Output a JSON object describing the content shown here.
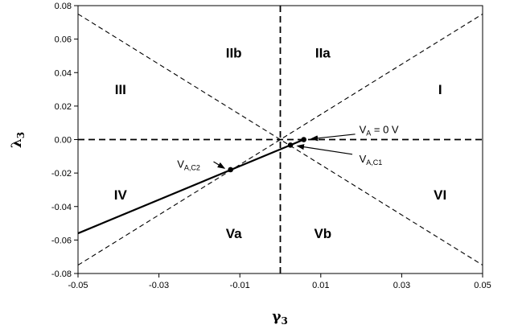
{
  "chart_data": {
    "type": "line",
    "title": "",
    "xlabel": "γ3",
    "ylabel": "λ3",
    "xlim": [
      -0.05,
      0.05
    ],
    "ylim": [
      -0.08,
      0.08
    ],
    "grid": false,
    "x_ticks": [
      "-0.05",
      "-0.03",
      "-0.01",
      "0.01",
      "0.03",
      "0.05"
    ],
    "x_tick_values": [
      -0.05,
      -0.03,
      -0.01,
      0.01,
      0.03,
      0.05
    ],
    "y_ticks": [
      "0.08",
      "0.06",
      "0.04",
      "0.02",
      "0.00",
      "-0.02",
      "-0.04",
      "-0.06",
      "-0.08"
    ],
    "y_tick_values": [
      0.08,
      0.06,
      0.04,
      0.02,
      0.0,
      -0.02,
      -0.04,
      -0.06,
      -0.08
    ],
    "dashed_lines": [
      {
        "x": [
          -0.05,
          0.05
        ],
        "y": [
          0.075,
          -0.075
        ]
      },
      {
        "x": [
          -0.05,
          0.05
        ],
        "y": [
          -0.075,
          0.075
        ]
      },
      {
        "x": [
          -0.05,
          0.05
        ],
        "y": [
          0.0,
          0.0
        ]
      },
      {
        "x": [
          0.0,
          0.0
        ],
        "y": [
          -0.08,
          0.08
        ]
      }
    ],
    "solid_line": {
      "x": [
        -0.05,
        0.0058
      ],
      "y": [
        -0.056,
        0.0
      ]
    },
    "points": [
      {
        "x": 0.0058,
        "y": 0.0
      },
      {
        "x": 0.0025,
        "y": -0.0033
      },
      {
        "x": -0.0123,
        "y": -0.018
      }
    ],
    "regions": [
      {
        "label": "IIb",
        "x": -0.0115,
        "y": 0.052
      },
      {
        "label": "IIa",
        "x": 0.0105,
        "y": 0.052
      },
      {
        "label": "III",
        "x": -0.0395,
        "y": 0.03
      },
      {
        "label": "I",
        "x": 0.0395,
        "y": 0.03
      },
      {
        "label": "IV",
        "x": -0.0395,
        "y": -0.033
      },
      {
        "label": "VI",
        "x": 0.0395,
        "y": -0.033
      },
      {
        "label": "Va",
        "x": -0.0115,
        "y": -0.056
      },
      {
        "label": "Vb",
        "x": 0.0105,
        "y": -0.056
      }
    ],
    "annotations": [
      {
        "main": "V",
        "sub": "A",
        "rest": " = 0 V",
        "text_x": 0.0195,
        "text_y": 0.0062,
        "arrow_from_x": 0.0185,
        "arrow_from_y": 0.0032,
        "arrow_to_x": 0.0076,
        "arrow_to_y": 0.0004
      },
      {
        "main": "V",
        "sub": "A,C1",
        "rest": "",
        "text_x": 0.0195,
        "text_y": -0.0112,
        "arrow_from_x": 0.0178,
        "arrow_from_y": -0.0088,
        "arrow_to_x": 0.0042,
        "arrow_to_y": -0.0038
      },
      {
        "main": "V",
        "sub": "A,C2",
        "rest": "",
        "text_x": -0.0255,
        "text_y": -0.0145,
        "arrow_from_x": -0.0165,
        "arrow_from_y": -0.0132,
        "arrow_to_x": -0.0138,
        "arrow_to_y": -0.0172
      }
    ]
  }
}
